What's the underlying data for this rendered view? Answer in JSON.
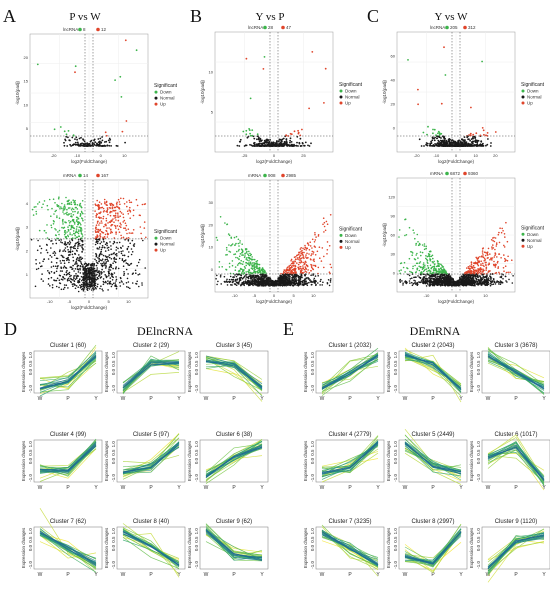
{
  "volcano": {
    "x_label": "log2(FoldChange)",
    "y_label": "-log10(padj)",
    "legend_title": "Significant",
    "legend_items": [
      "Down",
      "Normal",
      "Up"
    ],
    "colors": {
      "down": "#3cb44b",
      "normal": "#1a1a1a",
      "up": "#e0452b"
    },
    "panels": [
      {
        "letter": "A",
        "title": "P vs W",
        "top": {
          "type": "lncRNA",
          "down": "8",
          "up": "12",
          "yticks": [
            "5",
            "10",
            "15",
            "20"
          ],
          "xticks": [
            "-20",
            "-10",
            "0",
            "10"
          ]
        },
        "bottom": {
          "type": "mRNA",
          "down": "14",
          "up": "167",
          "yticks": [
            "1",
            "2",
            "3",
            "4"
          ],
          "xticks": [
            "-10",
            "-5",
            "0",
            "5",
            "10"
          ]
        }
      },
      {
        "letter": "B",
        "title": "Y vs P",
        "top": {
          "type": "lncRNA",
          "down": "28",
          "up": "47",
          "yticks": [
            "5",
            "10"
          ],
          "xticks": [
            "-25",
            "0",
            "25"
          ]
        },
        "bottom": {
          "type": "mRNA",
          "down": "908",
          "up": "2985",
          "yticks": [
            "0",
            "10",
            "20",
            "30"
          ],
          "xticks": [
            "-10",
            "-5",
            "0",
            "5",
            "10"
          ]
        }
      },
      {
        "letter": "C",
        "title": "Y vs W",
        "top": {
          "type": "lncRNA",
          "down": "205",
          "up": "312",
          "yticks": [
            "0",
            "20",
            "40",
            "60"
          ],
          "xticks": [
            "-20",
            "-10",
            "0",
            "10",
            "20"
          ]
        },
        "bottom": {
          "type": "mRNA",
          "down": "6872",
          "up": "9360",
          "yticks": [
            "0",
            "30",
            "60",
            "90",
            "120"
          ],
          "xticks": [
            "-10",
            "0",
            "10"
          ]
        }
      }
    ]
  },
  "clusters": {
    "x_ticks": [
      "W",
      "P",
      "Y"
    ],
    "y_label": "Expression changes",
    "y_ticks": [
      "-1.0",
      "0.0",
      "0.5",
      "1.0"
    ],
    "sections": [
      {
        "letter": "D",
        "title": "DElncRNA",
        "items": [
          {
            "label": "Cluster 1  (60)",
            "pattern": [
              -1,
              -0.6,
              1.0
            ]
          },
          {
            "label": "Cluster 2  (29)",
            "pattern": [
              -1,
              0.55,
              0.55
            ]
          },
          {
            "label": "Cluster 3  (45)",
            "pattern": [
              0.7,
              0.4,
              -1
            ]
          },
          {
            "label": "Cluster 4  (99)",
            "pattern": [
              -0.55,
              -0.65,
              1.05
            ]
          },
          {
            "label": "Cluster 5  (97)",
            "pattern": [
              -0.7,
              -0.4,
              1.1
            ]
          },
          {
            "label": "Cluster 6  (38)",
            "pattern": [
              -1,
              0.2,
              0.95
            ]
          },
          {
            "label": "Cluster 7  (62)",
            "pattern": [
              1.0,
              0,
              -1
            ]
          },
          {
            "label": "Cluster 8  (40)",
            "pattern": [
              1.0,
              0.1,
              -1.05
            ]
          },
          {
            "label": "Cluster 9  (62)",
            "pattern": [
              1.1,
              -0.4,
              -0.7
            ]
          }
        ]
      },
      {
        "letter": "E",
        "title": "DEmRNA",
        "items": [
          {
            "label": "Cluster 1  (2032)",
            "pattern": [
              -1,
              -0.1,
              1.0
            ]
          },
          {
            "label": "Cluster 2  (2043)",
            "pattern": [
              1.0,
              0.5,
              -1.1
            ]
          },
          {
            "label": "Cluster 3  (3678)",
            "pattern": [
              1.0,
              0,
              -1
            ]
          },
          {
            "label": "Cluster 4  (2779)",
            "pattern": [
              -0.75,
              -0.4,
              1.1
            ]
          },
          {
            "label": "Cluster 5  (2449)",
            "pattern": [
              1.1,
              -0.35,
              -0.75
            ]
          },
          {
            "label": "Cluster 6  (1017)",
            "pattern": [
              0.2,
              0.9,
              -1.2
            ]
          },
          {
            "label": "Cluster 7  (3235)",
            "pattern": [
              1.0,
              0,
              -1
            ]
          },
          {
            "label": "Cluster 8  (2997)",
            "pattern": [
              -0.5,
              -1.0,
              1.0
            ]
          },
          {
            "label": "Cluster 9  (1120)",
            "pattern": [
              -1.3,
              0.45,
              0.8
            ]
          }
        ]
      }
    ]
  }
}
